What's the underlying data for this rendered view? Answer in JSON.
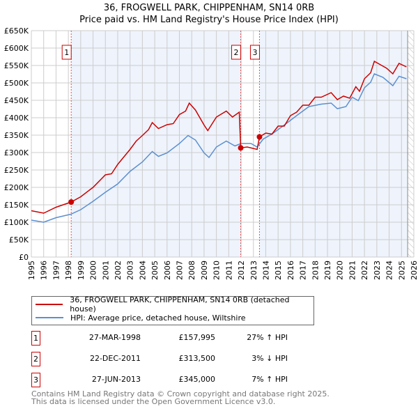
{
  "chart_data": {
    "type": "line",
    "title": "36, FROGWELL PARK, CHIPPENHAM, SN14 0RB",
    "subtitle": "Price paid vs. HM Land Registry's House Price Index (HPI)",
    "xlim": [
      1995,
      2026
    ],
    "ylim": [
      0,
      650000
    ],
    "x_ticks": [
      "1995",
      "1996",
      "1997",
      "1998",
      "1999",
      "2000",
      "2001",
      "2002",
      "2003",
      "2004",
      "2005",
      "2006",
      "2007",
      "2008",
      "2009",
      "2010",
      "2011",
      "2012",
      "2013",
      "2014",
      "2015",
      "2016",
      "2017",
      "2018",
      "2019",
      "2020",
      "2021",
      "2022",
      "2023",
      "2024",
      "2025",
      "2026"
    ],
    "y_ticks": [
      {
        "v": 0,
        "label": "£0"
      },
      {
        "v": 50000,
        "label": "£50K"
      },
      {
        "v": 100000,
        "label": "£100K"
      },
      {
        "v": 150000,
        "label": "£150K"
      },
      {
        "v": 200000,
        "label": "£200K"
      },
      {
        "v": 250000,
        "label": "£250K"
      },
      {
        "v": 300000,
        "label": "£300K"
      },
      {
        "v": 350000,
        "label": "£350K"
      },
      {
        "v": 400000,
        "label": "£400K"
      },
      {
        "v": 450000,
        "label": "£450K"
      },
      {
        "v": 500000,
        "label": "£500K"
      },
      {
        "v": 550000,
        "label": "£550K"
      },
      {
        "v": 600000,
        "label": "£600K"
      },
      {
        "v": 650000,
        "label": "£650K"
      }
    ],
    "grid": true,
    "forecast_start": 2025.5,
    "series": [
      {
        "name": "36, FROGWELL PARK, CHIPPENHAM, SN14 0RB (detached house)",
        "color": "#cc0000",
        "points": [
          [
            1995,
            133
          ],
          [
            1996,
            126
          ],
          [
            1997,
            143
          ],
          [
            1998.23,
            158
          ],
          [
            1999,
            173
          ],
          [
            2000,
            200
          ],
          [
            2001,
            236
          ],
          [
            2001.5,
            239
          ],
          [
            2002,
            266
          ],
          [
            2003,
            309
          ],
          [
            2003.5,
            333
          ],
          [
            2004,
            349
          ],
          [
            2004.5,
            366
          ],
          [
            2004.8,
            386
          ],
          [
            2005.3,
            369
          ],
          [
            2006,
            380
          ],
          [
            2006.5,
            383
          ],
          [
            2007,
            409
          ],
          [
            2007.5,
            419
          ],
          [
            2007.8,
            442
          ],
          [
            2008.3,
            422
          ],
          [
            2009,
            379
          ],
          [
            2009.3,
            363
          ],
          [
            2010,
            402
          ],
          [
            2010.8,
            419
          ],
          [
            2011.3,
            402
          ],
          [
            2011.85,
            416
          ],
          [
            2011.97,
            313.5
          ],
          [
            2012.5,
            316
          ],
          [
            2013.3,
            309
          ],
          [
            2013.49,
            345
          ],
          [
            2014,
            356
          ],
          [
            2014.5,
            353
          ],
          [
            2015,
            376
          ],
          [
            2015.5,
            376
          ],
          [
            2016,
            406
          ],
          [
            2016.5,
            416
          ],
          [
            2017,
            436
          ],
          [
            2017.5,
            436
          ],
          [
            2018,
            459
          ],
          [
            2018.5,
            459
          ],
          [
            2019.3,
            472
          ],
          [
            2019.8,
            452
          ],
          [
            2020.3,
            462
          ],
          [
            2020.8,
            456
          ],
          [
            2021.3,
            489
          ],
          [
            2021.6,
            476
          ],
          [
            2022,
            512
          ],
          [
            2022.5,
            529
          ],
          [
            2022.8,
            562
          ],
          [
            2023.3,
            552
          ],
          [
            2023.8,
            542
          ],
          [
            2024.3,
            526
          ],
          [
            2024.8,
            556
          ],
          [
            2025.4,
            546
          ]
        ]
      },
      {
        "name": "HPI: Average price, detached house, Wiltshire",
        "color": "#5b8fd0",
        "points": [
          [
            1995,
            106
          ],
          [
            1996,
            100
          ],
          [
            1997,
            113
          ],
          [
            1998.2,
            123
          ],
          [
            1999,
            136
          ],
          [
            2000,
            160
          ],
          [
            2001,
            186
          ],
          [
            2002,
            210
          ],
          [
            2003,
            246
          ],
          [
            2004,
            273
          ],
          [
            2004.8,
            303
          ],
          [
            2005.3,
            289
          ],
          [
            2006,
            299
          ],
          [
            2007,
            326
          ],
          [
            2007.7,
            349
          ],
          [
            2008.3,
            336
          ],
          [
            2009,
            299
          ],
          [
            2009.4,
            286
          ],
          [
            2010,
            316
          ],
          [
            2010.8,
            333
          ],
          [
            2011.5,
            319
          ],
          [
            2012,
            326
          ],
          [
            2012.8,
            326
          ],
          [
            2013.3,
            316
          ],
          [
            2013.8,
            339
          ],
          [
            2014.5,
            353
          ],
          [
            2015.5,
            379
          ],
          [
            2016.5,
            406
          ],
          [
            2017.5,
            432
          ],
          [
            2018.5,
            439
          ],
          [
            2019.3,
            442
          ],
          [
            2019.8,
            426
          ],
          [
            2020.5,
            432
          ],
          [
            2021,
            459
          ],
          [
            2021.5,
            449
          ],
          [
            2022,
            486
          ],
          [
            2022.5,
            502
          ],
          [
            2022.8,
            526
          ],
          [
            2023.5,
            516
          ],
          [
            2024.3,
            492
          ],
          [
            2024.8,
            519
          ],
          [
            2025.4,
            512
          ]
        ]
      }
    ],
    "sales": [
      {
        "n": "1",
        "x": 1998.23,
        "price": 157995,
        "date": "27-MAR-1998",
        "price_label": "£157,995",
        "hpi": "27% ↑ HPI"
      },
      {
        "n": "2",
        "x": 2011.97,
        "price": 313500,
        "date": "22-DEC-2011",
        "price_label": "£313,500",
        "hpi": "3% ↓ HPI"
      },
      {
        "n": "3",
        "x": 2013.49,
        "price": 345000,
        "date": "27-JUN-2013",
        "price_label": "£345,000",
        "hpi": "7% ↑ HPI"
      }
    ]
  },
  "footer": {
    "line1": "Contains HM Land Registry data © Crown copyright and database right 2025.",
    "line2": "This data is licensed under the Open Government Licence v3.0."
  }
}
